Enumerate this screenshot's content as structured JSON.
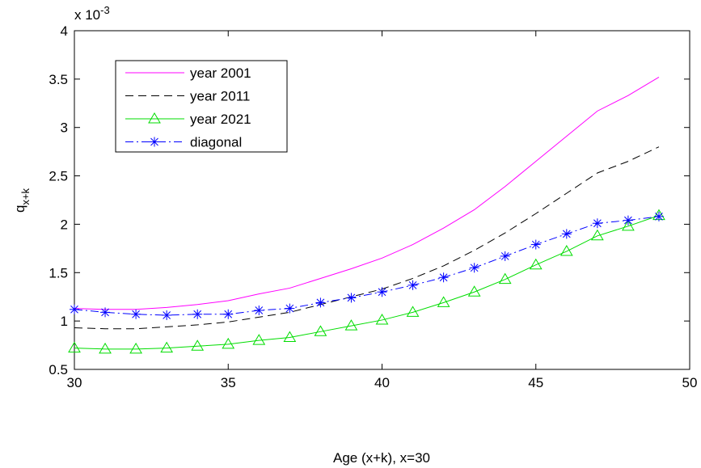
{
  "chart_data": {
    "type": "line",
    "x_label": "Age (x+k), x=30",
    "y_label": "q",
    "y_label_sub": "x+k",
    "y_multiplier": "x 10",
    "y_multiplier_exp": "-3",
    "x": [
      30,
      31,
      32,
      33,
      34,
      35,
      36,
      37,
      38,
      39,
      40,
      41,
      42,
      43,
      44,
      45,
      46,
      47,
      48,
      49
    ],
    "series": [
      {
        "name": "year 2001",
        "color": "#ff00ff",
        "style": "solid",
        "marker": null,
        "values": [
          1.13,
          1.12,
          1.12,
          1.14,
          1.17,
          1.21,
          1.28,
          1.34,
          1.44,
          1.54,
          1.65,
          1.79,
          1.96,
          2.15,
          2.39,
          2.65,
          2.91,
          3.17,
          3.33,
          3.52
        ]
      },
      {
        "name": "year 2011",
        "color": "#000000",
        "style": "dashed",
        "marker": null,
        "values": [
          0.93,
          0.92,
          0.92,
          0.94,
          0.96,
          0.99,
          1.04,
          1.09,
          1.17,
          1.25,
          1.33,
          1.44,
          1.57,
          1.73,
          1.91,
          2.11,
          2.32,
          2.53,
          2.65,
          2.8
        ]
      },
      {
        "name": "year 2021",
        "color": "#00dd00",
        "style": "solid",
        "marker": "triangle",
        "values": [
          0.72,
          0.71,
          0.71,
          0.72,
          0.74,
          0.76,
          0.8,
          0.83,
          0.89,
          0.95,
          1.01,
          1.09,
          1.19,
          1.3,
          1.43,
          1.58,
          1.72,
          1.88,
          1.98,
          2.09
        ]
      },
      {
        "name": "diagonal",
        "color": "#0000ff",
        "style": "dashdot",
        "marker": "asterisk",
        "values": [
          1.12,
          1.09,
          1.07,
          1.06,
          1.07,
          1.07,
          1.11,
          1.13,
          1.19,
          1.24,
          1.3,
          1.37,
          1.45,
          1.55,
          1.67,
          1.79,
          1.9,
          2.01,
          2.04,
          2.08
        ]
      }
    ],
    "xlim": [
      30,
      50
    ],
    "xticks": [
      30,
      35,
      40,
      45,
      50
    ],
    "ylim": [
      0.5,
      4
    ],
    "yticks": [
      0.5,
      1,
      1.5,
      2,
      2.5,
      3,
      3.5,
      4
    ],
    "grid": false,
    "legend": "upper left"
  }
}
